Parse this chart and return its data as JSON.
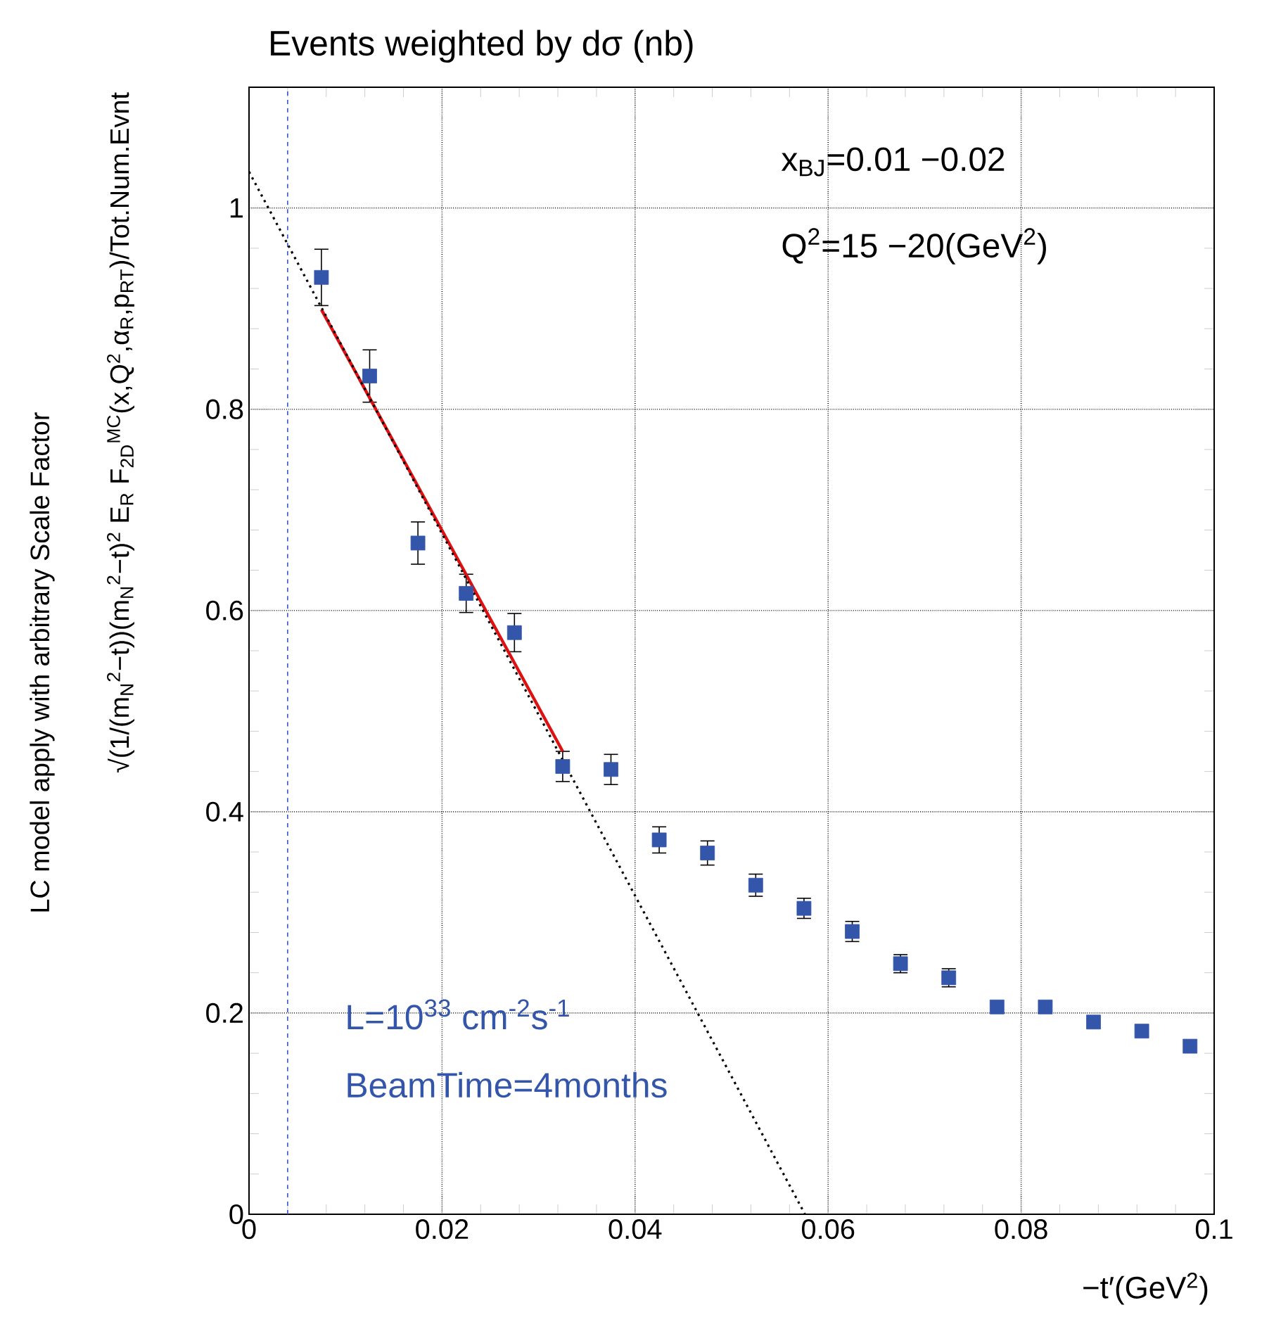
{
  "chart_data": {
    "type": "scatter",
    "title": "Events weighted by dσ (nb)",
    "xlabel": "−t′(GeV$^{2}$)",
    "ylabel": "√(1/(m$_{N}$$^{2}$−t))(m$_{N}$$^{2}$−t)$^{2}$ E$_{R}$ F$_{2D}$$^{MC}$(x,Q$^{2}$,α$_{R}$,p$_{RT}$)/Tot.Num.Evnt",
    "annotations": [
      "x$_{BJ}$=0.01 −0.02",
      "Q$^{2}$=15 −20(GeV$^{2}$)",
      "L=10$^{33}$ cm$^{-2}$s$^{-1}$",
      "BeamTime=4months",
      "LC model   apply with arbitrary Scale Factor"
    ],
    "xlim": [
      0,
      0.1
    ],
    "ylim": [
      0,
      1.12
    ],
    "xticks": [
      0,
      0.02,
      0.04,
      0.06,
      0.08,
      0.1
    ],
    "yticks": [
      0,
      0.2,
      0.4,
      0.6,
      0.8,
      1
    ],
    "grid": true,
    "series": [
      {
        "marker": "square",
        "color": "#3355aa",
        "x": [
          0.0075,
          0.0125,
          0.0175,
          0.0225,
          0.0275,
          0.0325,
          0.0375,
          0.0425,
          0.0475,
          0.0525,
          0.0575,
          0.0625,
          0.0675,
          0.0725,
          0.0775,
          0.0825,
          0.0875,
          0.0925,
          0.0975
        ],
        "values": [
          0.931,
          0.833,
          0.667,
          0.617,
          0.578,
          0.445,
          0.442,
          0.372,
          0.359,
          0.327,
          0.304,
          0.281,
          0.249,
          0.235,
          0.206,
          0.206,
          0.191,
          0.182,
          0.167
        ],
        "errors": [
          0.028,
          0.026,
          0.021,
          0.019,
          0.019,
          0.015,
          0.015,
          0.013,
          0.012,
          0.011,
          0.01,
          0.01,
          0.009,
          0.009,
          null,
          null,
          null,
          null,
          null
        ]
      },
      {
        "type": "line",
        "marker": "none",
        "line_style": "solid",
        "color": "#dd1111",
        "x": [
          0.0075,
          0.0325
        ],
        "values": [
          0.899,
          0.46
        ]
      },
      {
        "type": "line",
        "marker": "none",
        "line_style": "dotted",
        "color": "#000000",
        "x": [
          0,
          0.0576
        ],
        "values": [
          1.036,
          0
        ]
      }
    ],
    "ref_lines": [
      {
        "axis": "x",
        "value": 0.004,
        "color": "#3355cc",
        "line_style": "dashed"
      }
    ]
  }
}
